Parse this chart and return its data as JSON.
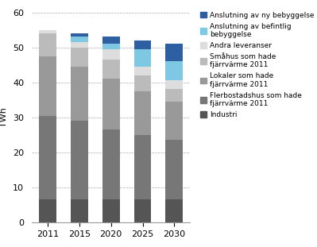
{
  "years": [
    "2011",
    "2015",
    "2020",
    "2025",
    "2030"
  ],
  "series": [
    {
      "name": "Industri",
      "color": "#555555",
      "values": [
        6.5,
        6.5,
        6.5,
        6.5,
        6.5
      ]
    },
    {
      "name": "Flerbostadshus som hade\nfjärrvärme 2011",
      "color": "#777777",
      "values": [
        24.0,
        22.5,
        20.0,
        18.5,
        17.0
      ]
    },
    {
      "name": "Lokaler som hade\nfjärrvärme 2011",
      "color": "#999999",
      "values": [
        17.0,
        15.5,
        14.5,
        12.5,
        11.0
      ]
    },
    {
      "name": "Småhus som hade\nfjärrvärme 2011",
      "color": "#bbbbbb",
      "values": [
        6.5,
        5.5,
        5.5,
        4.5,
        3.5
      ]
    },
    {
      "name": "Andra leveranser",
      "color": "#dddddd",
      "values": [
        1.0,
        1.5,
        3.0,
        2.5,
        2.5
      ]
    },
    {
      "name": "Anslutning av befintlig\nbebyggelse",
      "color": "#7ec8e3",
      "values": [
        0.0,
        1.5,
        1.5,
        5.0,
        5.5
      ]
    },
    {
      "name": "Anslutning av ny bebyggelse",
      "color": "#2e5fa3",
      "values": [
        0.0,
        1.0,
        2.0,
        2.5,
        5.0
      ]
    }
  ],
  "ylabel": "TWh",
  "ylim": [
    0,
    60
  ],
  "yticks": [
    0,
    10,
    20,
    30,
    40,
    50,
    60
  ],
  "background_color": "#ffffff",
  "bar_width": 0.55,
  "legend_fontsize": 6.5,
  "axis_fontsize": 8,
  "tick_fontsize": 8,
  "figsize": [
    3.99,
    3.11
  ],
  "dpi": 100
}
